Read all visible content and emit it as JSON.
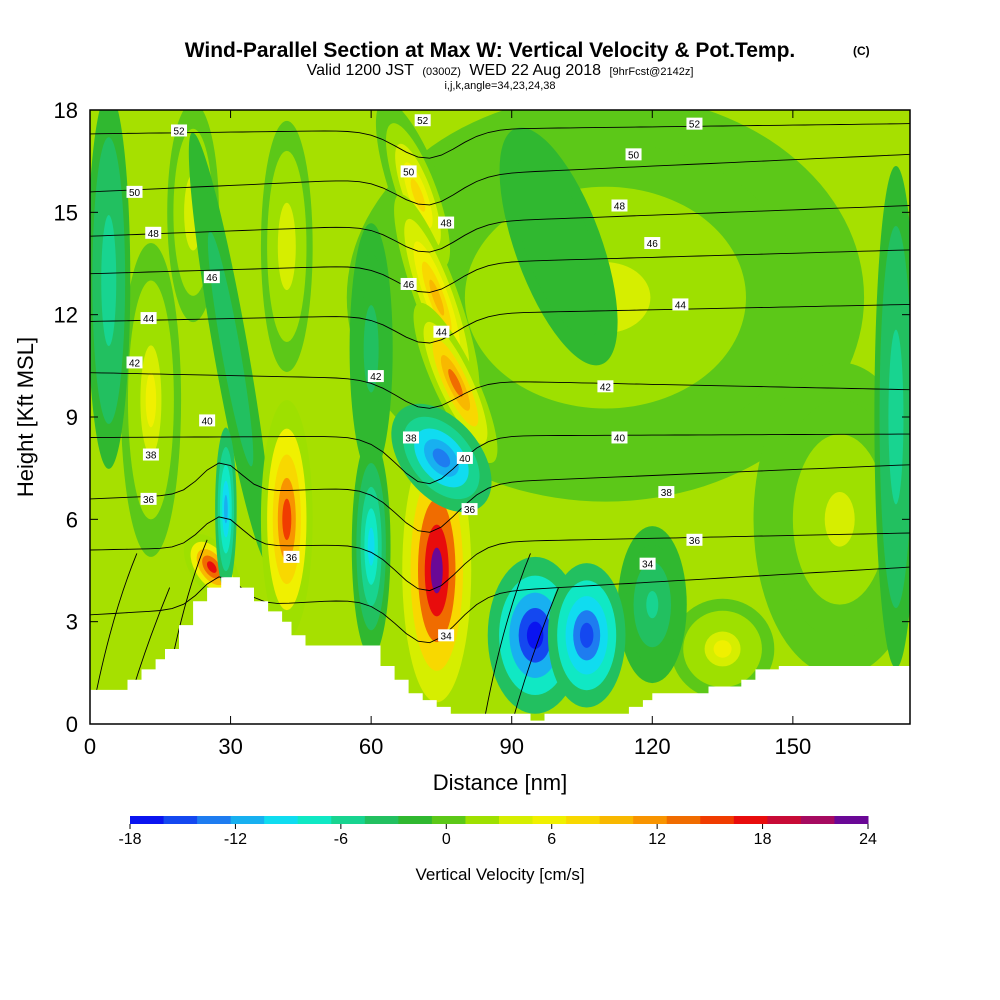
{
  "title": {
    "main": "Wind-Parallel Section at Max W: Vertical Velocity & Pot.Temp.",
    "copyright": "(C)",
    "valid_prefix": "Valid 1200 JST",
    "valid_utc": "(0300Z)",
    "valid_date": "WED 22 Aug 2018",
    "forecast": "[9hrFcst@2142z]",
    "params": "i,j,k,angle=34,23,24,38"
  },
  "chart_data": {
    "type": "heatmap",
    "xlabel": "Distance [nm]",
    "ylabel": "Height [Kft MSL]",
    "xlim": [
      0,
      175
    ],
    "ylim": [
      0,
      18
    ],
    "x_ticks": [
      "0",
      "30",
      "60",
      "90",
      "120",
      "150"
    ],
    "x_tick_values": [
      0,
      30,
      60,
      90,
      120,
      150
    ],
    "y_ticks": [
      "0",
      "3",
      "6",
      "9",
      "12",
      "15",
      "18"
    ],
    "y_tick_values": [
      0,
      3,
      6,
      9,
      12,
      15,
      18
    ],
    "colorbar": {
      "label": "Vertical Velocity [cm/s]",
      "min": -18,
      "max": 24,
      "step": 2,
      "ticks": [
        "-18",
        "-12",
        "-6",
        "0",
        "6",
        "12",
        "18",
        "24"
      ],
      "tick_values": [
        -18,
        -12,
        -6,
        0,
        6,
        12,
        18,
        24
      ],
      "colors": [
        "#0a14f0",
        "#1448f0",
        "#1e7cf0",
        "#18b0f0",
        "#10dcf0",
        "#10e8c4",
        "#18d490",
        "#22c060",
        "#30b830",
        "#5cc818",
        "#9ee000",
        "#d6ee00",
        "#f0f000",
        "#f8d800",
        "#f8b800",
        "#f89400",
        "#f06c00",
        "#f03c00",
        "#e80c0c",
        "#c80a36",
        "#a60a60",
        "#6a0896"
      ]
    },
    "field_features": [
      {
        "kind": "updraft",
        "x": 42,
        "y": 6.0,
        "w_cm_s": 16
      },
      {
        "kind": "updraft",
        "x": 74,
        "y": 4.5,
        "w_cm_s": 24
      },
      {
        "kind": "updraft",
        "x": 26,
        "y": 4.6,
        "w_cm_s": 18
      },
      {
        "kind": "updraft",
        "x": 78,
        "y": 10.0,
        "w_cm_s": 14
      },
      {
        "kind": "downdraft",
        "x": 60,
        "y": 5.2,
        "w_cm_s": -10
      },
      {
        "kind": "downdraft",
        "x": 75,
        "y": 7.8,
        "w_cm_s": -14
      },
      {
        "kind": "downdraft",
        "x": 95,
        "y": 2.6,
        "w_cm_s": -18
      },
      {
        "kind": "downdraft",
        "x": 106,
        "y": 2.6,
        "w_cm_s": -16
      },
      {
        "kind": "downdraft",
        "x": 29,
        "y": 6.3,
        "w_cm_s": -12
      }
    ],
    "theta_contours": [
      {
        "value": 34,
        "label": "34"
      },
      {
        "value": 36,
        "label": "36"
      },
      {
        "value": 38,
        "label": "38"
      },
      {
        "value": 40,
        "label": "40"
      },
      {
        "value": 42,
        "label": "42"
      },
      {
        "value": 44,
        "label": "44"
      },
      {
        "value": 46,
        "label": "46"
      },
      {
        "value": 48,
        "label": "48"
      },
      {
        "value": 50,
        "label": "50"
      },
      {
        "value": 52,
        "label": "52"
      }
    ],
    "contour_labels": [
      {
        "text": "52",
        "x": 19,
        "y": 17.4
      },
      {
        "text": "52",
        "x": 71,
        "y": 17.7
      },
      {
        "text": "52",
        "x": 129,
        "y": 17.6
      },
      {
        "text": "50",
        "x": 9.5,
        "y": 15.6
      },
      {
        "text": "50",
        "x": 68,
        "y": 16.2
      },
      {
        "text": "50",
        "x": 116,
        "y": 16.7
      },
      {
        "text": "48",
        "x": 13.5,
        "y": 14.4
      },
      {
        "text": "48",
        "x": 76,
        "y": 14.7
      },
      {
        "text": "48",
        "x": 113,
        "y": 15.2
      },
      {
        "text": "46",
        "x": 26,
        "y": 13.1
      },
      {
        "text": "46",
        "x": 68,
        "y": 12.9
      },
      {
        "text": "46",
        "x": 120,
        "y": 14.1
      },
      {
        "text": "44",
        "x": 12.5,
        "y": 11.9
      },
      {
        "text": "44",
        "x": 75,
        "y": 11.5
      },
      {
        "text": "44",
        "x": 126,
        "y": 12.3
      },
      {
        "text": "42",
        "x": 9.5,
        "y": 10.6
      },
      {
        "text": "42",
        "x": 61,
        "y": 10.2
      },
      {
        "text": "42",
        "x": 110,
        "y": 9.9
      },
      {
        "text": "40",
        "x": 25,
        "y": 8.9
      },
      {
        "text": "40",
        "x": 80,
        "y": 7.8
      },
      {
        "text": "40",
        "x": 113,
        "y": 8.4
      },
      {
        "text": "38",
        "x": 13,
        "y": 7.9
      },
      {
        "text": "38",
        "x": 68.5,
        "y": 8.4
      },
      {
        "text": "38",
        "x": 123,
        "y": 6.8
      },
      {
        "text": "36",
        "x": 12.5,
        "y": 6.6
      },
      {
        "text": "36",
        "x": 43,
        "y": 4.9
      },
      {
        "text": "36",
        "x": 81,
        "y": 6.3
      },
      {
        "text": "36",
        "x": 129,
        "y": 5.4
      },
      {
        "text": "34",
        "x": 76,
        "y": 2.6
      },
      {
        "text": "34",
        "x": 119,
        "y": 4.7
      }
    ],
    "terrain": {
      "x": [
        0,
        8,
        8,
        11,
        11,
        14,
        14,
        16,
        16,
        19,
        19,
        22,
        22,
        25,
        25,
        28,
        28,
        32,
        32,
        35,
        35,
        38,
        38,
        41,
        41,
        43,
        43,
        46,
        46,
        62,
        62,
        65,
        65,
        68,
        68,
        71,
        71,
        74,
        74,
        77,
        77,
        94,
        94,
        97,
        97,
        115,
        115,
        118,
        118,
        120,
        120,
        132,
        132,
        139,
        139,
        142,
        142,
        147,
        147,
        175
      ],
      "y": [
        1.0,
        1.0,
        1.3,
        1.3,
        1.6,
        1.6,
        1.9,
        1.9,
        2.2,
        2.2,
        2.9,
        2.9,
        3.6,
        3.6,
        4.0,
        4.0,
        4.3,
        4.3,
        4.0,
        4.0,
        3.6,
        3.6,
        3.3,
        3.3,
        3.0,
        3.0,
        2.6,
        2.6,
        2.3,
        2.3,
        1.7,
        1.7,
        1.3,
        1.3,
        0.9,
        0.9,
        0.7,
        0.7,
        0.5,
        0.5,
        0.3,
        0.3,
        0.1,
        0.1,
        0.3,
        0.3,
        0.5,
        0.5,
        0.7,
        0.7,
        0.9,
        0.9,
        1.1,
        1.1,
        1.3,
        1.3,
        1.6,
        1.6,
        1.7,
        1.7
      ]
    }
  }
}
